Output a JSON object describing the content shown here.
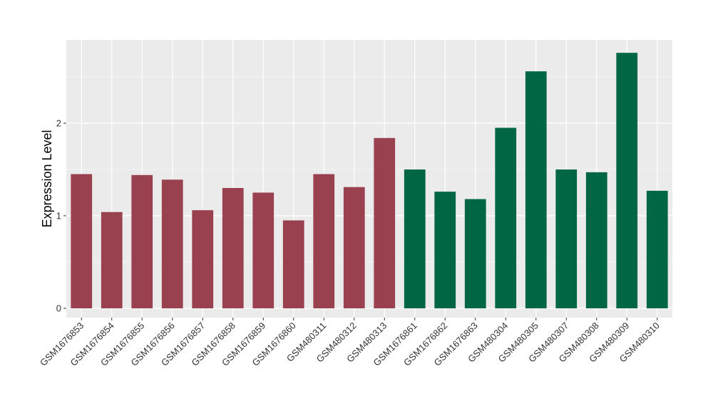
{
  "chart_data": {
    "type": "bar",
    "title": "",
    "xlabel": "",
    "ylabel": "Expression Level",
    "ylim": [
      -0.1,
      2.9
    ],
    "yticks": [
      0,
      1,
      2
    ],
    "grid": true,
    "legend": "none",
    "panel_background": "#ebebeb",
    "grid_color": "#ffffff",
    "categories": [
      "GSM1676853",
      "GSM1676854",
      "GSM1676855",
      "GSM1676856",
      "GSM1676857",
      "GSM1676858",
      "GSM1676859",
      "GSM1676860",
      "GSM480311",
      "GSM480312",
      "GSM480313",
      "GSM1676861",
      "GSM1676862",
      "GSM1676863",
      "GSM480304",
      "GSM480305",
      "GSM480307",
      "GSM480308",
      "GSM480309",
      "GSM480310"
    ],
    "values": [
      1.45,
      1.04,
      1.44,
      1.39,
      1.06,
      1.3,
      1.25,
      0.95,
      1.45,
      1.31,
      1.84,
      1.5,
      1.26,
      1.18,
      1.95,
      2.56,
      1.5,
      1.47,
      2.76,
      1.27
    ],
    "group_colors": [
      "#9a4150",
      "#9a4150",
      "#9a4150",
      "#9a4150",
      "#9a4150",
      "#9a4150",
      "#9a4150",
      "#9a4150",
      "#9a4150",
      "#9a4150",
      "#9a4150",
      "#006644",
      "#006644",
      "#006644",
      "#006644",
      "#006644",
      "#006644",
      "#006644",
      "#006644",
      "#006644"
    ]
  }
}
